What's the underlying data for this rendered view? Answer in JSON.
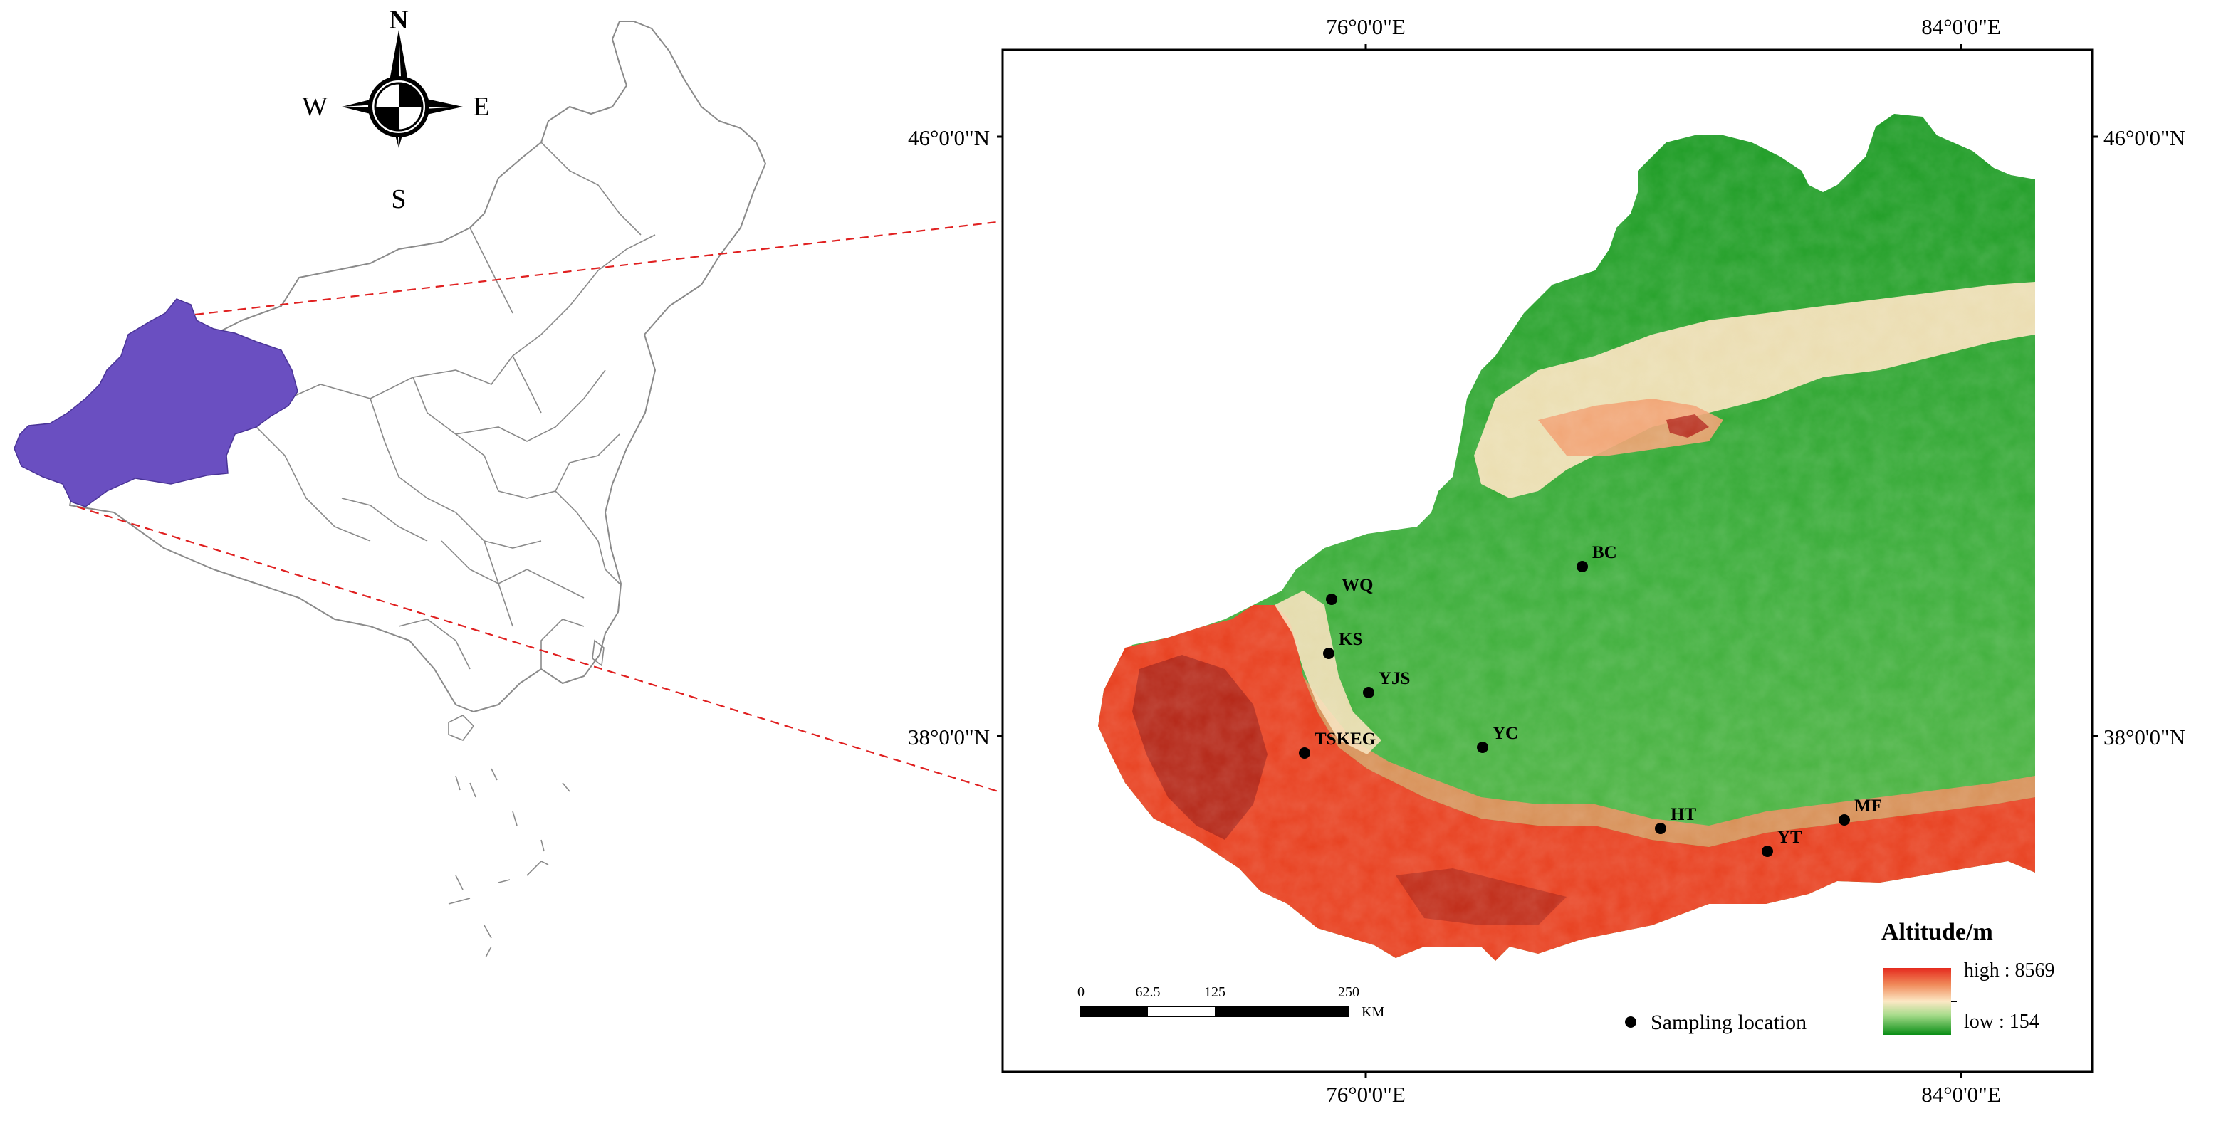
{
  "compass": {
    "north": "N",
    "south": "S",
    "east": "E",
    "west": "W"
  },
  "graticule": {
    "top_ticks": [
      "76°0'0\"E",
      "84°0'0\"E"
    ],
    "bottom_ticks": [
      "76°0'0\"E",
      "84°0'0\"E"
    ],
    "left_ticks": [
      "46°0'0\"N",
      "38°0'0\"N"
    ],
    "right_ticks": [
      "46°0'0\"N",
      "38°0'0\"N"
    ]
  },
  "sampling_sites": [
    {
      "label": "BC"
    },
    {
      "label": "WQ"
    },
    {
      "label": "KS"
    },
    {
      "label": "YJS"
    },
    {
      "label": "YC"
    },
    {
      "label": "TSKEG"
    },
    {
      "label": "HT"
    },
    {
      "label": "YT"
    },
    {
      "label": "MF"
    }
  ],
  "legend": {
    "title": "Altitude/m",
    "high_label": "high : 8569",
    "low_label": "low : 154",
    "sampling_label": "Sampling location",
    "ramp_colors": [
      "#e52a1e",
      "#f08a5a",
      "#fce8c4",
      "#a9dc8c",
      "#2fa82f",
      "#0a8e16"
    ]
  },
  "scalebar": {
    "ticks": [
      "0",
      "62.5",
      "125",
      "250"
    ],
    "unit": "KM"
  },
  "colors": {
    "highlight_region": "#6a4fc1",
    "callout_line": "#e02020",
    "province_outline": "#8a8a8a"
  }
}
